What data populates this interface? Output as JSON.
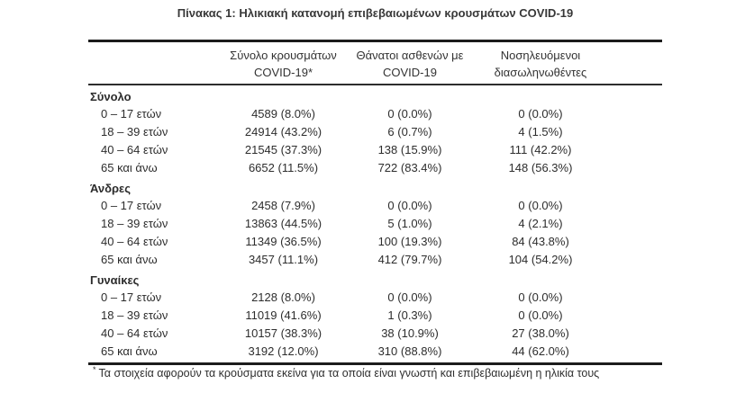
{
  "page": {
    "title": "Πίνακας 1: Ηλικιακή κατανομή επιβεβαιωμένων κρουσμάτων COVID-19"
  },
  "colors": {
    "text": "#2d2d2d",
    "rule": "#1c1c1c",
    "background": "#ffffff"
  },
  "table": {
    "columns": [
      {
        "line1": "Σύνολο κρουσμάτων",
        "line2": "COVID-19*"
      },
      {
        "line1": "Θάνατοι ασθενών με",
        "line2": "COVID-19"
      },
      {
        "line1": "Νοσηλευόμενοι",
        "line2": "διασωληνωθέντες"
      }
    ],
    "sections": [
      {
        "label": "Σύνολο",
        "rows": [
          {
            "label": "0 – 17 ετών",
            "cases": "4589 (8.0%)",
            "deaths": "0 (0.0%)",
            "intubated": "0 (0.0%)"
          },
          {
            "label": "18 – 39 ετών",
            "cases": "24914 (43.2%)",
            "deaths": "6 (0.7%)",
            "intubated": "4 (1.5%)"
          },
          {
            "label": "40 – 64 ετών",
            "cases": "21545 (37.3%)",
            "deaths": "138 (15.9%)",
            "intubated": "111 (42.2%)"
          },
          {
            "label": "65 και άνω",
            "cases": "6652 (11.5%)",
            "deaths": "722 (83.4%)",
            "intubated": "148 (56.3%)"
          }
        ]
      },
      {
        "label": "Άνδρες",
        "rows": [
          {
            "label": "0 – 17 ετών",
            "cases": "2458 (7.9%)",
            "deaths": "0 (0.0%)",
            "intubated": "0 (0.0%)"
          },
          {
            "label": "18 – 39 ετών",
            "cases": "13863 (44.5%)",
            "deaths": "5 (1.0%)",
            "intubated": "4 (2.1%)"
          },
          {
            "label": "40 – 64 ετών",
            "cases": "11349 (36.5%)",
            "deaths": "100 (19.3%)",
            "intubated": "84 (43.8%)"
          },
          {
            "label": "65 και άνω",
            "cases": "3457 (11.1%)",
            "deaths": "412 (79.7%)",
            "intubated": "104 (54.2%)"
          }
        ]
      },
      {
        "label": "Γυναίκες",
        "rows": [
          {
            "label": "0 – 17 ετών",
            "cases": "2128 (8.0%)",
            "deaths": "0 (0.0%)",
            "intubated": "0 (0.0%)"
          },
          {
            "label": "18 – 39 ετών",
            "cases": "11019 (41.6%)",
            "deaths": "1 (0.3%)",
            "intubated": "0 (0.0%)"
          },
          {
            "label": "40 – 64 ετών",
            "cases": "10157 (38.3%)",
            "deaths": "38 (10.9%)",
            "intubated": "27 (38.0%)"
          },
          {
            "label": "65 και άνω",
            "cases": "3192 (12.0%)",
            "deaths": "310 (88.8%)",
            "intubated": "44 (62.0%)"
          }
        ]
      }
    ],
    "footnote": {
      "marker": "*",
      "text": "Τα στοιχεία αφορούν τα κρούσματα εκείνα για τα οποία είναι γνωστή και επιβεβαιωμένη η ηλικία τους"
    }
  }
}
